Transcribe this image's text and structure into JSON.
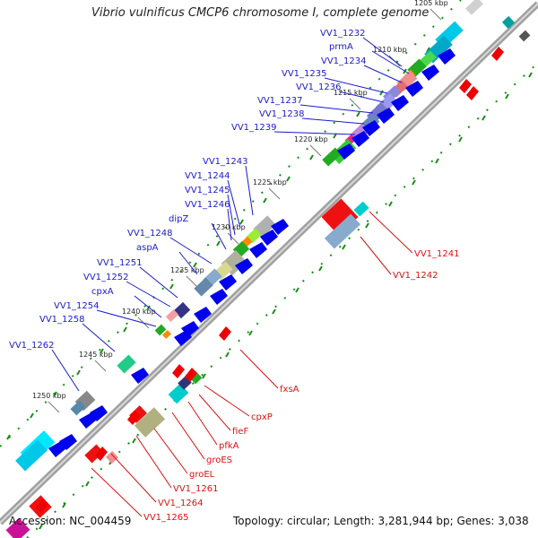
{
  "title": "Vibrio vulnificus CMCP6 chromosome I, complete genome",
  "footer": {
    "accession": "Accession: NC_004459",
    "topology": "Topology: circular; Length: 3,281,944 bp; Genes: 3,038"
  },
  "colors": {
    "backbone": "#a0a0a0",
    "forward_arrow": "#0000ee",
    "reverse_arrow": "#ee0000",
    "forward_label": "#1a1acc",
    "reverse_label": "#dd1111",
    "tick_marks": "#1a8c1a",
    "tick_dots": "#1a8c1a"
  },
  "scale_ticks": [
    {
      "label": "1205 kbp"
    },
    {
      "label": "1210 kbp"
    },
    {
      "label": "1215 kbp"
    },
    {
      "label": "1220 kbp"
    },
    {
      "label": "1225 kbp"
    },
    {
      "label": "1230 kbp"
    },
    {
      "label": "1235 kbp"
    },
    {
      "label": "1240 kbp"
    },
    {
      "label": "1245 kbp"
    },
    {
      "label": "1250 kbp"
    }
  ],
  "forward_genes": [
    {
      "label": "VV1_1232"
    },
    {
      "label": "prmA"
    },
    {
      "label": "VV1_1234"
    },
    {
      "label": "VV1_1235"
    },
    {
      "label": "VV1_1236"
    },
    {
      "label": "VV1_1237"
    },
    {
      "label": "VV1_1238"
    },
    {
      "label": "VV1_1239"
    },
    {
      "label": "VV1_1243"
    },
    {
      "label": "VV1_1244"
    },
    {
      "label": "VV1_1245"
    },
    {
      "label": "VV1_1246"
    },
    {
      "label": "dipZ"
    },
    {
      "label": "VV1_1248"
    },
    {
      "label": "aspA"
    },
    {
      "label": "VV1_1251"
    },
    {
      "label": "VV1_1252"
    },
    {
      "label": "cpxA"
    },
    {
      "label": "VV1_1254"
    },
    {
      "label": "VV1_1258"
    },
    {
      "label": "VV1_1262"
    }
  ],
  "reverse_genes": [
    {
      "label": "VV1_1241"
    },
    {
      "label": "VV1_1242"
    },
    {
      "label": "fxsA"
    },
    {
      "label": "cpxP"
    },
    {
      "label": "fieF"
    },
    {
      "label": "pfkA"
    },
    {
      "label": "groES"
    },
    {
      "label": "groEL"
    },
    {
      "label": "VV1_1261"
    },
    {
      "label": "VV1_1264"
    },
    {
      "label": "VV1_1265"
    }
  ]
}
